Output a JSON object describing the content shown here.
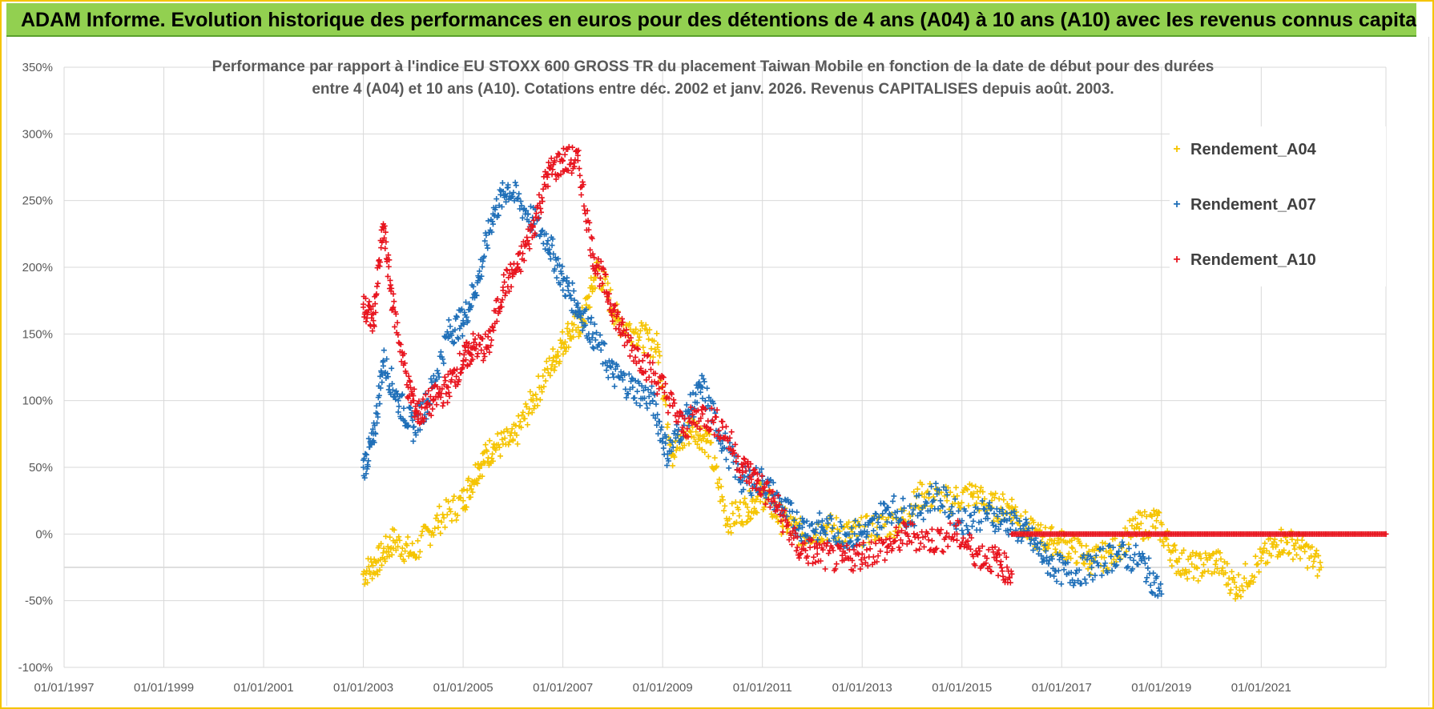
{
  "banner": {
    "text": "ADAM Informe. Evolution historique des performances en euros pour des détentions de 4 ans (A04) à 10 ans (A10) avec les revenus connus capitalisés"
  },
  "colors": {
    "banner_bg": "#92d050",
    "A04": "#f5c400",
    "A07": "#1f6fb8",
    "A10": "#e8141e",
    "grid": "#d9d9d9"
  },
  "chart_data": {
    "type": "scatter",
    "title_lines": [
      "Performance par rapport à l'indice EU STOXX 600 GROSS TR  du placement Taiwan Mobile  en fonction de la date de début pour des durées",
      "entre 4 (A04) et 10 ans (A10).  Cotations entre déc. 2002 et janv. 2026. Revenus CAPITALISES depuis août. 2003."
    ],
    "xlabel": "",
    "ylabel": "",
    "x_range": [
      1997.0,
      2023.5
    ],
    "x_ticks": [
      "01/01/1997",
      "01/01/1999",
      "01/01/2001",
      "01/01/2003",
      "01/01/2005",
      "01/01/2007",
      "01/01/2009",
      "01/01/2011",
      "01/01/2013",
      "01/01/2015",
      "01/01/2017",
      "01/01/2019",
      "01/01/2021"
    ],
    "y_range": [
      -100,
      350
    ],
    "y_ticks": [
      "350%",
      "300%",
      "250%",
      "200%",
      "150%",
      "100%",
      "50%",
      "0%",
      "-50%",
      "-100%"
    ],
    "legend": [
      "Rendement_A04",
      "Rendement_A07",
      "Rendement_A10"
    ],
    "series": [
      {
        "name": "Rendement_A04",
        "x": [
          2003.0,
          2003.3,
          2003.6,
          2004.0,
          2004.5,
          2005.0,
          2005.3,
          2005.6,
          2006.0,
          2006.4,
          2006.8,
          2007.1,
          2007.4,
          2007.7,
          2008.1,
          2008.5,
          2008.9,
          2009.2,
          2009.6,
          2009.9,
          2010.3,
          2010.7,
          2011.0,
          2011.4,
          2011.8,
          2012.3,
          2012.8,
          2013.3,
          2013.8,
          2014.2,
          2014.7,
          2015.2,
          2015.6,
          2016.0,
          2016.4,
          2016.8,
          2017.2,
          2017.6,
          2018.0,
          2018.5,
          2018.9,
          2019.3,
          2019.7,
          2020.1,
          2020.5,
          2021.0,
          2021.4,
          2021.8,
          2022.2
        ],
        "y": [
          -30,
          -20,
          -5,
          -15,
          10,
          25,
          50,
          65,
          70,
          100,
          130,
          150,
          160,
          200,
          160,
          150,
          140,
          60,
          80,
          70,
          10,
          20,
          30,
          10,
          0,
          5,
          0,
          5,
          10,
          30,
          25,
          30,
          20,
          20,
          0,
          -5,
          -10,
          -20,
          -15,
          5,
          10,
          -20,
          -25,
          -20,
          -40,
          -20,
          -5,
          -10,
          -25
        ]
      },
      {
        "name": "Rendement_A07",
        "x": [
          2003.0,
          2003.2,
          2003.4,
          2003.7,
          2004.0,
          2004.3,
          2004.7,
          2005.0,
          2005.3,
          2005.6,
          2005.9,
          2006.3,
          2006.7,
          2007.0,
          2007.3,
          2007.6,
          2008.0,
          2008.4,
          2008.8,
          2009.1,
          2009.5,
          2009.8,
          2010.2,
          2010.6,
          2011.0,
          2011.4,
          2011.8,
          2012.2,
          2012.7,
          2013.1,
          2013.5,
          2014.0,
          2014.5,
          2015.0,
          2015.5,
          2015.9,
          2016.3,
          2016.7,
          2017.1,
          2017.6,
          2018.1,
          2018.6,
          2019.0
        ],
        "y": [
          50,
          70,
          130,
          100,
          80,
          100,
          150,
          160,
          190,
          240,
          260,
          240,
          220,
          190,
          170,
          150,
          120,
          110,
          100,
          60,
          90,
          110,
          70,
          40,
          40,
          20,
          5,
          5,
          0,
          0,
          20,
          15,
          30,
          10,
          15,
          10,
          0,
          -20,
          -30,
          -25,
          -15,
          -20,
          -45
        ]
      },
      {
        "name": "Rendement_A10",
        "x": [
          2003.0,
          2003.2,
          2003.4,
          2003.6,
          2003.9,
          2004.1,
          2004.4,
          2004.7,
          2005.0,
          2005.2,
          2005.5,
          2005.8,
          2006.1,
          2006.4,
          2006.7,
          2007.0,
          2007.3,
          2007.6,
          2007.9,
          2008.2,
          2008.6,
          2009.0,
          2009.4,
          2009.8,
          2010.2,
          2010.6,
          2010.9,
          2011.3,
          2011.7,
          2012.1,
          2012.6,
          2013.0,
          2013.5,
          2013.9,
          2014.4,
          2014.9,
          2015.3,
          2015.7,
          2016.0
        ],
        "y": [
          170,
          160,
          230,
          170,
          110,
          90,
          100,
          110,
          130,
          140,
          140,
          185,
          200,
          230,
          270,
          280,
          280,
          210,
          180,
          150,
          130,
          110,
          80,
          90,
          80,
          50,
          40,
          20,
          -10,
          -15,
          -20,
          -15,
          -10,
          0,
          -5,
          0,
          -15,
          -20,
          -30
        ]
      },
      {
        "name": "Rendement_A10_flat",
        "x": [
          2016.0,
          2023.5
        ],
        "y": [
          0,
          0
        ]
      }
    ]
  }
}
